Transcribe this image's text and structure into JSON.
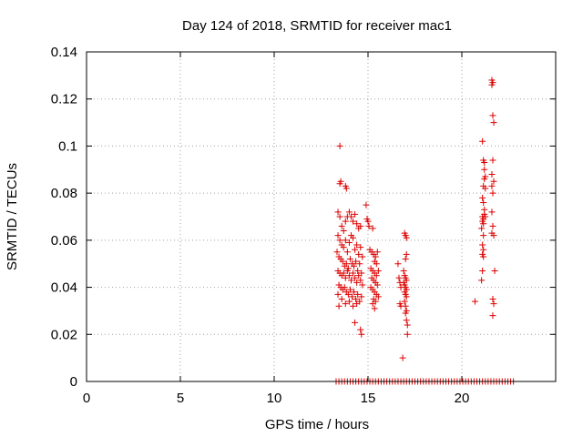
{
  "chart_data": {
    "type": "scatter",
    "title": "Day 124 of 2018, SRMTID for receiver mac1",
    "xlabel": "GPS time / hours",
    "ylabel": "SRMTID / TECUs",
    "xlim": [
      0,
      25
    ],
    "ylim": [
      0,
      0.14
    ],
    "xticks": [
      0,
      5,
      10,
      15,
      20
    ],
    "xtick_labels": [
      "0",
      "5",
      "10",
      "15",
      "20"
    ],
    "yticks": [
      0,
      0.02,
      0.04,
      0.06,
      0.08,
      0.1,
      0.12,
      0.14
    ],
    "ytick_labels": [
      "0",
      "0.02",
      "0.04",
      "0.06",
      "0.08",
      "0.1",
      "0.12",
      "0.14"
    ],
    "grid": true,
    "marker": "plus",
    "color": "#dd0000",
    "series": [
      {
        "name": "SRMTID",
        "points": [
          [
            13.3,
            0
          ],
          [
            13.45,
            0
          ],
          [
            13.6,
            0
          ],
          [
            13.75,
            0
          ],
          [
            13.9,
            0
          ],
          [
            14.05,
            0
          ],
          [
            14.2,
            0
          ],
          [
            14.35,
            0
          ],
          [
            14.5,
            0
          ],
          [
            14.65,
            0
          ],
          [
            14.8,
            0
          ],
          [
            14.95,
            0
          ],
          [
            15.1,
            0
          ],
          [
            15.25,
            0
          ],
          [
            15.4,
            0
          ],
          [
            15.55,
            0
          ],
          [
            15.7,
            0
          ],
          [
            15.85,
            0
          ],
          [
            16.0,
            0
          ],
          [
            16.15,
            0
          ],
          [
            16.3,
            0
          ],
          [
            16.45,
            0
          ],
          [
            16.6,
            0
          ],
          [
            16.75,
            0
          ],
          [
            16.9,
            0
          ],
          [
            17.05,
            0
          ],
          [
            17.2,
            0
          ],
          [
            17.35,
            0
          ],
          [
            17.5,
            0
          ],
          [
            17.65,
            0
          ],
          [
            17.8,
            0
          ],
          [
            17.95,
            0
          ],
          [
            18.1,
            0
          ],
          [
            18.25,
            0
          ],
          [
            18.4,
            0
          ],
          [
            18.55,
            0
          ],
          [
            18.7,
            0
          ],
          [
            18.85,
            0
          ],
          [
            19.0,
            0
          ],
          [
            19.15,
            0
          ],
          [
            19.3,
            0
          ],
          [
            19.45,
            0
          ],
          [
            19.6,
            0
          ],
          [
            19.75,
            0
          ],
          [
            19.9,
            0
          ],
          [
            20.05,
            0
          ],
          [
            20.2,
            0
          ],
          [
            20.35,
            0
          ],
          [
            20.5,
            0
          ],
          [
            20.65,
            0
          ],
          [
            20.8,
            0
          ],
          [
            20.95,
            0
          ],
          [
            21.1,
            0
          ],
          [
            21.25,
            0
          ],
          [
            21.4,
            0
          ],
          [
            21.55,
            0
          ],
          [
            21.7,
            0
          ],
          [
            21.85,
            0
          ],
          [
            22.0,
            0
          ],
          [
            22.15,
            0
          ],
          [
            22.3,
            0
          ],
          [
            22.45,
            0
          ],
          [
            22.6,
            0
          ],
          [
            22.75,
            0
          ],
          [
            13.5,
            0.1
          ],
          [
            13.5,
            0.084
          ],
          [
            13.55,
            0.085
          ],
          [
            13.8,
            0.083
          ],
          [
            13.85,
            0.082
          ],
          [
            13.4,
            0.072
          ],
          [
            13.5,
            0.07
          ],
          [
            13.6,
            0.066
          ],
          [
            13.7,
            0.064
          ],
          [
            13.8,
            0.068
          ],
          [
            13.9,
            0.07
          ],
          [
            14.0,
            0.072
          ],
          [
            14.1,
            0.07
          ],
          [
            14.2,
            0.068
          ],
          [
            14.3,
            0.071
          ],
          [
            14.4,
            0.067
          ],
          [
            14.5,
            0.065
          ],
          [
            14.6,
            0.066
          ],
          [
            13.4,
            0.062
          ],
          [
            13.5,
            0.06
          ],
          [
            13.6,
            0.058
          ],
          [
            13.7,
            0.057
          ],
          [
            13.8,
            0.06
          ],
          [
            13.9,
            0.055
          ],
          [
            14.0,
            0.059
          ],
          [
            14.1,
            0.062
          ],
          [
            14.2,
            0.061
          ],
          [
            14.3,
            0.056
          ],
          [
            14.4,
            0.058
          ],
          [
            14.5,
            0.054
          ],
          [
            14.6,
            0.057
          ],
          [
            14.7,
            0.053
          ],
          [
            13.35,
            0.055
          ],
          [
            13.45,
            0.053
          ],
          [
            13.55,
            0.052
          ],
          [
            13.65,
            0.051
          ],
          [
            13.75,
            0.049
          ],
          [
            13.85,
            0.05
          ],
          [
            13.95,
            0.048
          ],
          [
            14.05,
            0.052
          ],
          [
            14.15,
            0.05
          ],
          [
            14.25,
            0.049
          ],
          [
            14.35,
            0.051
          ],
          [
            14.45,
            0.047
          ],
          [
            14.55,
            0.05
          ],
          [
            14.65,
            0.046
          ],
          [
            13.4,
            0.047
          ],
          [
            13.5,
            0.046
          ],
          [
            13.6,
            0.045
          ],
          [
            13.7,
            0.046
          ],
          [
            13.8,
            0.044
          ],
          [
            13.9,
            0.047
          ],
          [
            14.0,
            0.045
          ],
          [
            14.1,
            0.043
          ],
          [
            14.2,
            0.046
          ],
          [
            14.3,
            0.044
          ],
          [
            14.4,
            0.042
          ],
          [
            14.5,
            0.045
          ],
          [
            14.6,
            0.043
          ],
          [
            14.7,
            0.041
          ],
          [
            13.45,
            0.041
          ],
          [
            13.55,
            0.04
          ],
          [
            13.65,
            0.039
          ],
          [
            13.75,
            0.04
          ],
          [
            13.85,
            0.038
          ],
          [
            13.95,
            0.037
          ],
          [
            14.05,
            0.039
          ],
          [
            14.15,
            0.036
          ],
          [
            14.25,
            0.038
          ],
          [
            14.35,
            0.035
          ],
          [
            14.45,
            0.037
          ],
          [
            14.55,
            0.034
          ],
          [
            14.65,
            0.036
          ],
          [
            13.4,
            0.037
          ],
          [
            13.6,
            0.035
          ],
          [
            13.8,
            0.033
          ],
          [
            14.0,
            0.034
          ],
          [
            14.2,
            0.032
          ],
          [
            14.4,
            0.033
          ],
          [
            13.45,
            0.032
          ],
          [
            14.3,
            0.025
          ],
          [
            14.6,
            0.022
          ],
          [
            14.65,
            0.02
          ],
          [
            14.9,
            0.075
          ],
          [
            14.95,
            0.069
          ],
          [
            15.0,
            0.068
          ],
          [
            15.05,
            0.066
          ],
          [
            15.25,
            0.065
          ],
          [
            15.1,
            0.056
          ],
          [
            15.2,
            0.055
          ],
          [
            15.3,
            0.054
          ],
          [
            15.4,
            0.053
          ],
          [
            15.5,
            0.055
          ],
          [
            15.35,
            0.051
          ],
          [
            15.45,
            0.05
          ],
          [
            15.15,
            0.048
          ],
          [
            15.25,
            0.047
          ],
          [
            15.35,
            0.046
          ],
          [
            15.45,
            0.045
          ],
          [
            15.55,
            0.047
          ],
          [
            15.2,
            0.044
          ],
          [
            15.3,
            0.043
          ],
          [
            15.4,
            0.042
          ],
          [
            15.5,
            0.041
          ],
          [
            15.15,
            0.04
          ],
          [
            15.25,
            0.039
          ],
          [
            15.35,
            0.038
          ],
          [
            15.45,
            0.037
          ],
          [
            15.55,
            0.036
          ],
          [
            15.3,
            0.035
          ],
          [
            15.4,
            0.034
          ],
          [
            15.25,
            0.033
          ],
          [
            15.35,
            0.031
          ],
          [
            16.6,
            0.05
          ],
          [
            16.65,
            0.044
          ],
          [
            16.7,
            0.042
          ],
          [
            16.75,
            0.04
          ],
          [
            16.7,
            0.033
          ],
          [
            16.75,
            0.032
          ],
          [
            16.85,
            0.01
          ],
          [
            16.95,
            0.063
          ],
          [
            17.0,
            0.062
          ],
          [
            17.05,
            0.061
          ],
          [
            17.05,
            0.054
          ],
          [
            17.0,
            0.052
          ],
          [
            16.9,
            0.047
          ],
          [
            16.95,
            0.045
          ],
          [
            17.0,
            0.044
          ],
          [
            17.05,
            0.043
          ],
          [
            16.9,
            0.042
          ],
          [
            16.95,
            0.041
          ],
          [
            17.0,
            0.04
          ],
          [
            17.05,
            0.039
          ],
          [
            16.95,
            0.038
          ],
          [
            17.0,
            0.037
          ],
          [
            17.05,
            0.036
          ],
          [
            16.95,
            0.034
          ],
          [
            17.0,
            0.032
          ],
          [
            17.05,
            0.03
          ],
          [
            17.0,
            0.029
          ],
          [
            17.05,
            0.026
          ],
          [
            17.1,
            0.024
          ],
          [
            17.1,
            0.02
          ],
          [
            21.1,
            0.102
          ],
          [
            21.15,
            0.094
          ],
          [
            21.2,
            0.093
          ],
          [
            21.2,
            0.09
          ],
          [
            21.25,
            0.087
          ],
          [
            21.2,
            0.086
          ],
          [
            21.15,
            0.083
          ],
          [
            21.25,
            0.082
          ],
          [
            21.1,
            0.078
          ],
          [
            21.15,
            0.076
          ],
          [
            21.2,
            0.073
          ],
          [
            21.1,
            0.07
          ],
          [
            21.15,
            0.069
          ],
          [
            21.2,
            0.071
          ],
          [
            21.25,
            0.07
          ],
          [
            21.1,
            0.068
          ],
          [
            21.15,
            0.067
          ],
          [
            21.05,
            0.065
          ],
          [
            21.15,
            0.062
          ],
          [
            21.1,
            0.058
          ],
          [
            21.15,
            0.056
          ],
          [
            21.1,
            0.054
          ],
          [
            21.15,
            0.053
          ],
          [
            21.1,
            0.047
          ],
          [
            21.05,
            0.043
          ],
          [
            20.7,
            0.034
          ],
          [
            21.6,
            0.128
          ],
          [
            21.65,
            0.127
          ],
          [
            21.6,
            0.126
          ],
          [
            21.65,
            0.113
          ],
          [
            21.7,
            0.11
          ],
          [
            21.65,
            0.094
          ],
          [
            21.6,
            0.088
          ],
          [
            21.7,
            0.085
          ],
          [
            21.6,
            0.083
          ],
          [
            21.65,
            0.08
          ],
          [
            21.6,
            0.072
          ],
          [
            21.65,
            0.066
          ],
          [
            21.6,
            0.063
          ],
          [
            21.7,
            0.062
          ],
          [
            21.75,
            0.047
          ],
          [
            21.65,
            0.035
          ],
          [
            21.7,
            0.033
          ],
          [
            21.65,
            0.028
          ]
        ]
      }
    ]
  }
}
